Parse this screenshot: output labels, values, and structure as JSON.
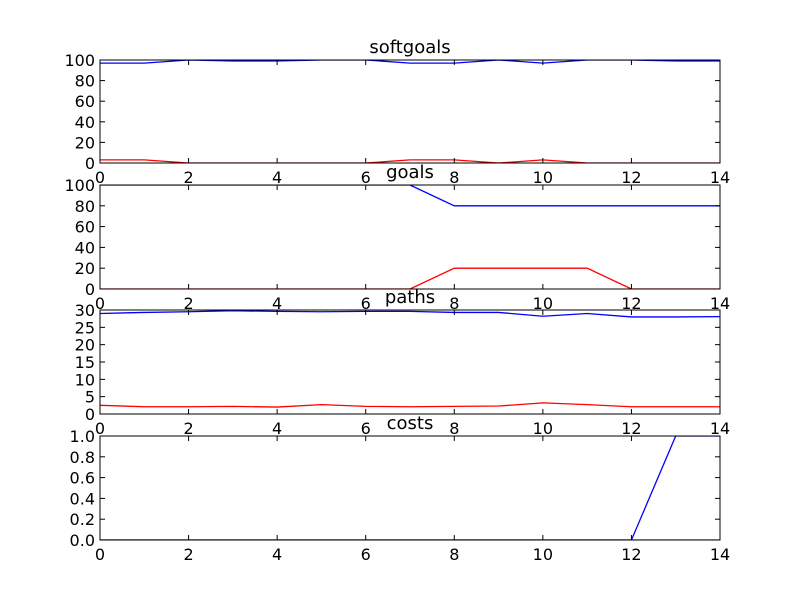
{
  "chart_data": [
    {
      "type": "line",
      "title": "softgoals",
      "xlim": [
        0,
        14
      ],
      "ylim": [
        0,
        100
      ],
      "xticks": [
        "0",
        "2",
        "4",
        "6",
        "8",
        "10",
        "12",
        "14"
      ],
      "yticks": [
        "0",
        "20",
        "40",
        "60",
        "80",
        "100"
      ],
      "grid": false,
      "series": [
        {
          "color": "#0000ff",
          "x": [
            0,
            1,
            2,
            3,
            4,
            5,
            6,
            7,
            8,
            9,
            10,
            11,
            12,
            13,
            14
          ],
          "y": [
            97,
            97,
            100,
            99,
            99,
            100,
            100,
            97,
            97,
            100,
            97,
            100,
            100,
            99,
            99
          ]
        },
        {
          "color": "#ff0000",
          "x": [
            0,
            1,
            2,
            3,
            4,
            5,
            6,
            7,
            8,
            9,
            10,
            11,
            12,
            13,
            14
          ],
          "y": [
            3,
            3,
            0,
            0,
            0,
            0,
            0,
            3,
            3,
            0,
            3,
            0,
            0,
            0,
            0
          ]
        }
      ]
    },
    {
      "type": "line",
      "title": "goals",
      "xlim": [
        0,
        14
      ],
      "ylim": [
        0,
        100
      ],
      "xticks": [
        "0",
        "2",
        "4",
        "6",
        "8",
        "10",
        "12",
        "14"
      ],
      "yticks": [
        "0",
        "20",
        "40",
        "60",
        "80",
        "100"
      ],
      "grid": false,
      "series": [
        {
          "color": "#0000ff",
          "x": [
            0,
            1,
            2,
            3,
            4,
            5,
            6,
            7,
            8,
            9,
            10,
            11,
            12,
            13,
            14
          ],
          "y": [
            100,
            100,
            100,
            100,
            100,
            100,
            100,
            100,
            80,
            80,
            80,
            80,
            80,
            80,
            80
          ]
        },
        {
          "color": "#ff0000",
          "x": [
            0,
            1,
            2,
            3,
            4,
            5,
            6,
            7,
            8,
            9,
            10,
            11,
            12,
            13,
            14
          ],
          "y": [
            0,
            0,
            0,
            0,
            0,
            0,
            0,
            0,
            20,
            20,
            20,
            20,
            0,
            0,
            0
          ]
        }
      ]
    },
    {
      "type": "line",
      "title": "paths",
      "xlim": [
        0,
        14
      ],
      "ylim": [
        0,
        30
      ],
      "xticks": [
        "0",
        "2",
        "4",
        "6",
        "8",
        "10",
        "12",
        "14"
      ],
      "yticks": [
        "0",
        "5",
        "10",
        "15",
        "20",
        "25",
        "30"
      ],
      "grid": false,
      "series": [
        {
          "color": "#0000ff",
          "x": [
            0,
            1,
            2,
            3,
            4,
            5,
            6,
            7,
            8,
            9,
            10,
            11,
            12,
            13,
            14
          ],
          "y": [
            29,
            29.3,
            29.5,
            29.8,
            29.6,
            29.5,
            29.6,
            29.6,
            29.3,
            29.3,
            28.2,
            29,
            28,
            28,
            28.1
          ]
        },
        {
          "color": "#ff0000",
          "x": [
            0,
            1,
            2,
            3,
            4,
            5,
            6,
            7,
            8,
            9,
            10,
            11,
            12,
            13,
            14
          ],
          "y": [
            2.5,
            2.1,
            2.1,
            2.2,
            2,
            2.7,
            2.2,
            2.1,
            2.2,
            2.3,
            3.2,
            2.7,
            2.1,
            2.1,
            2.1
          ]
        }
      ]
    },
    {
      "type": "line",
      "title": "costs",
      "xlim": [
        0,
        14
      ],
      "ylim": [
        0,
        1
      ],
      "xticks": [
        "0",
        "2",
        "4",
        "6",
        "8",
        "10",
        "12",
        "14"
      ],
      "yticks": [
        "0.0",
        "0.2",
        "0.4",
        "0.6",
        "0.8",
        "1.0"
      ],
      "grid": false,
      "series": [
        {
          "color": "#0000ff",
          "x": [
            0,
            1,
            2,
            3,
            4,
            5,
            6,
            7,
            8,
            9,
            10,
            11,
            12,
            13,
            14
          ],
          "y": [
            0,
            0,
            0,
            0,
            0,
            0,
            0,
            0,
            0,
            0,
            0,
            0,
            0,
            1,
            1
          ]
        },
        {
          "color": "#ff0000",
          "x": [
            0,
            1,
            2,
            3,
            4,
            5,
            6,
            7,
            8,
            9,
            10,
            11,
            12,
            13,
            14
          ],
          "y": [
            0,
            0,
            0,
            0,
            0,
            0,
            0,
            0,
            0,
            0,
            0,
            0,
            0,
            0,
            0
          ]
        }
      ]
    }
  ]
}
